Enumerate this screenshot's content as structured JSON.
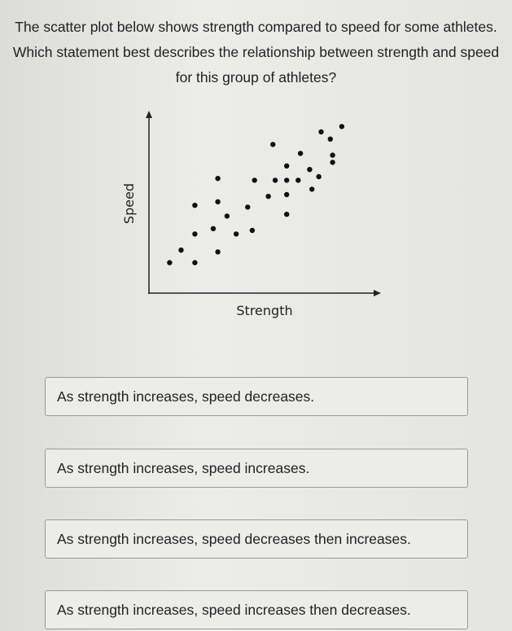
{
  "question": "The scatter plot below shows strength compared to speed for some athletes. Which statement best describes the relationship between strength and speed for this group of athletes?",
  "chart_data": {
    "type": "scatter",
    "x_label": "Strength",
    "y_label": "Speed",
    "color": "#111111",
    "xlim": [
      0,
      10
    ],
    "ylim": [
      0,
      10
    ],
    "x": [
      0.9,
      1.4,
      2.0,
      2.0,
      3.0,
      2.8,
      3.8,
      4.5,
      2.0,
      3.0,
      3.4,
      4.3,
      3.0,
      4.6,
      5.2,
      5.5,
      6.0,
      6.0,
      6.0,
      5.4,
      6.0,
      6.5,
      6.6,
      7.0,
      7.1,
      7.4,
      7.9,
      8.0,
      8.0,
      8.4,
      7.5
    ],
    "y": [
      1.7,
      2.4,
      1.7,
      3.3,
      2.3,
      3.6,
      3.3,
      3.5,
      4.9,
      5.1,
      4.3,
      4.8,
      6.4,
      6.3,
      5.4,
      6.3,
      5.5,
      6.3,
      4.4,
      8.3,
      7.1,
      6.3,
      7.8,
      6.9,
      5.8,
      6.5,
      8.6,
      7.7,
      7.3,
      9.3,
      9.0
    ]
  },
  "options": [
    "As strength increases, speed decreases.",
    "As strength increases, speed increases.",
    "As strength increases, speed decreases then increases.",
    "As strength increases, speed increases then decreases."
  ]
}
